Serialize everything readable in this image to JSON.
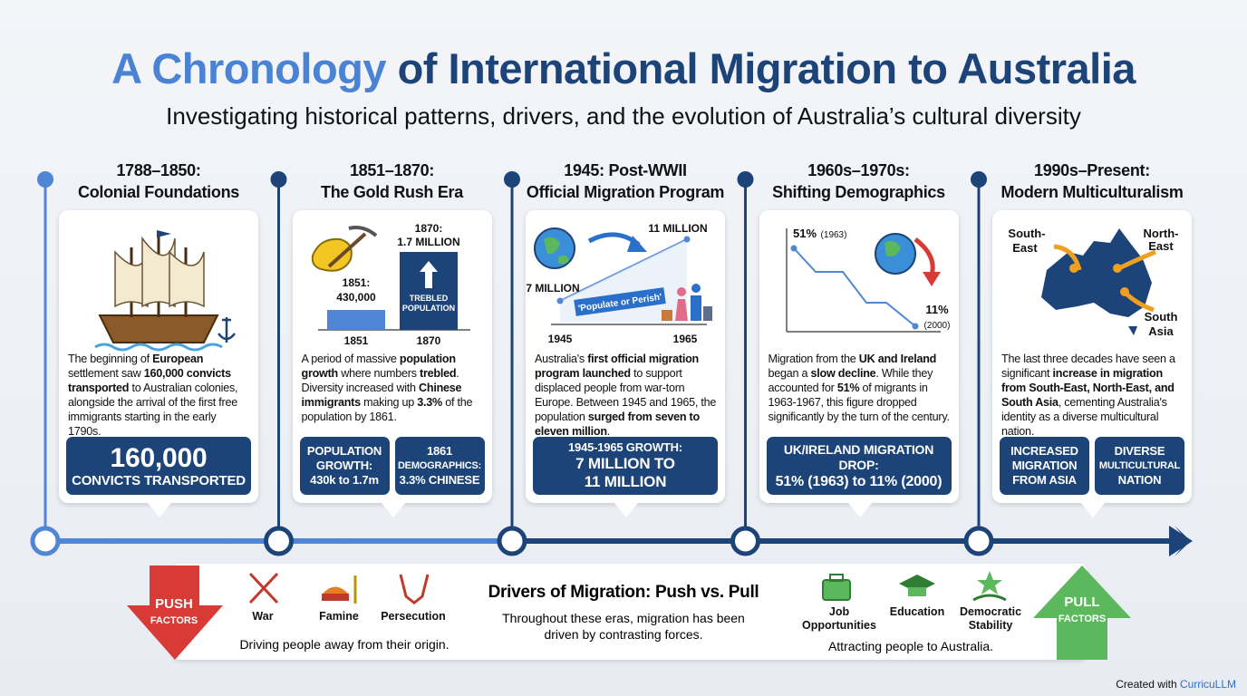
{
  "header": {
    "title_highlight": "A Chronology",
    "title_rest": "of International Migration to Australia",
    "subtitle": "Investigating historical patterns, drivers, and the evolution of Australia’s cultural diversity"
  },
  "eras": [
    {
      "heading": [
        "1788–1850:",
        "Colonial Foundations"
      ],
      "figure": [],
      "body": [
        "The beginning of ",
        "European",
        " settlement saw ",
        "160,000 convicts transported",
        " to Australian colonies, alongside the arrival of the first free immigrants starting in the early 1790s."
      ],
      "callouts": [
        [
          "160,000",
          "CONVICTS TRANSPORTED"
        ]
      ]
    },
    {
      "heading": [
        "1851–1870:",
        "The Gold Rush Era"
      ],
      "figure": [
        "1851:",
        "430,000",
        "1870:",
        "1.7 MILLION",
        "TREBLED",
        "POPULATION",
        "1851",
        "1870"
      ],
      "body": [
        "A period of massive ",
        "population growth",
        " where numbers ",
        "trebled",
        ". Diversity increased with ",
        "Chinese immigrants",
        " making up ",
        "3.3%",
        " of the population by 1861."
      ],
      "callouts": [
        [
          "POPULATION",
          "GROWTH:",
          "430k to 1.7m"
        ],
        [
          "1861",
          "DEMOGRAPHICS:",
          "3.3% CHINESE"
        ]
      ]
    },
    {
      "heading": [
        "1945: Post-WWII",
        "Official Migration Program"
      ],
      "figure": [
        "11 MILLION",
        "7 MILLION",
        "'Populate or Perish'",
        "1945",
        "1965"
      ],
      "body": [
        "Australia's ",
        "first official migration program launched",
        " to support displaced people from war-torn Europe. Between 1945 and 1965, the population ",
        "surged from seven to eleven million",
        "."
      ],
      "callouts": [
        [
          "1945-1965 GROWTH:",
          "7 MILLION TO",
          "11 MILLION"
        ]
      ]
    },
    {
      "heading": [
        "1960s–1970s:",
        "Shifting Demographics"
      ],
      "figure": [
        "51%",
        "(1963)",
        "11%",
        "(2000)"
      ],
      "body": [
        "Migration from the ",
        "UK and Ireland",
        " began a ",
        "slow decline",
        ". While they accounted for ",
        "51%",
        " of migrants in 1963-1967, this figure dropped significantly by the turn of the century."
      ],
      "callouts": [
        [
          "UK/IRELAND MIGRATION DROP:",
          "51% (1963) to 11% (2000)"
        ]
      ]
    },
    {
      "heading": [
        "1990s–Present:",
        "Modern Multiculturalism"
      ],
      "figure": [
        "South-",
        "East",
        "North-",
        "East",
        "South",
        "Asia"
      ],
      "body": [
        "The last three decades have seen a significant ",
        "increase in migration from South-East, North-East, and South Asia",
        ", cementing Australia's identity as a diverse multicultural nation."
      ],
      "callouts": [
        [
          "INCREASED",
          "MIGRATION",
          "FROM ASIA"
        ],
        [
          "DIVERSE",
          "MULTICULTURAL",
          "NATION"
        ]
      ]
    }
  ],
  "drivers": {
    "title": "Drivers of Migration: Push vs. Pull",
    "description": "Throughout these eras, migration has been driven by contrasting forces.",
    "push": {
      "label": [
        "PUSH",
        "FACTORS"
      ],
      "factors": [
        "War",
        "Famine",
        "Persecution"
      ],
      "caption": "Driving people away from their origin."
    },
    "pull": {
      "label": [
        "PULL",
        "FACTORS"
      ],
      "factors": [
        "Job Opportunities",
        "Education",
        "Democratic Stability"
      ],
      "caption": "Attracting people to Australia."
    }
  },
  "footer": {
    "prefix": "Created with",
    "brand": "CurricuLLM"
  }
}
